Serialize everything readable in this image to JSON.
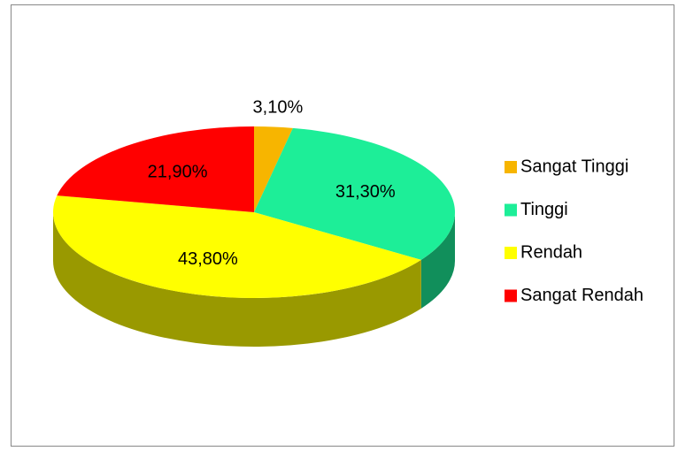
{
  "chart_data": {
    "type": "pie",
    "categories": [
      "Sangat Tinggi",
      "Tinggi",
      "Rendah",
      "Sangat Rendah"
    ],
    "values": [
      3.1,
      31.3,
      43.8,
      21.9
    ],
    "value_labels": [
      "3,10%",
      "31,30%",
      "43,80%",
      "21,90%"
    ],
    "colors": [
      "#f7b500",
      "#1dee98",
      "#ffff00",
      "#ff0000"
    ],
    "legend": "right"
  }
}
